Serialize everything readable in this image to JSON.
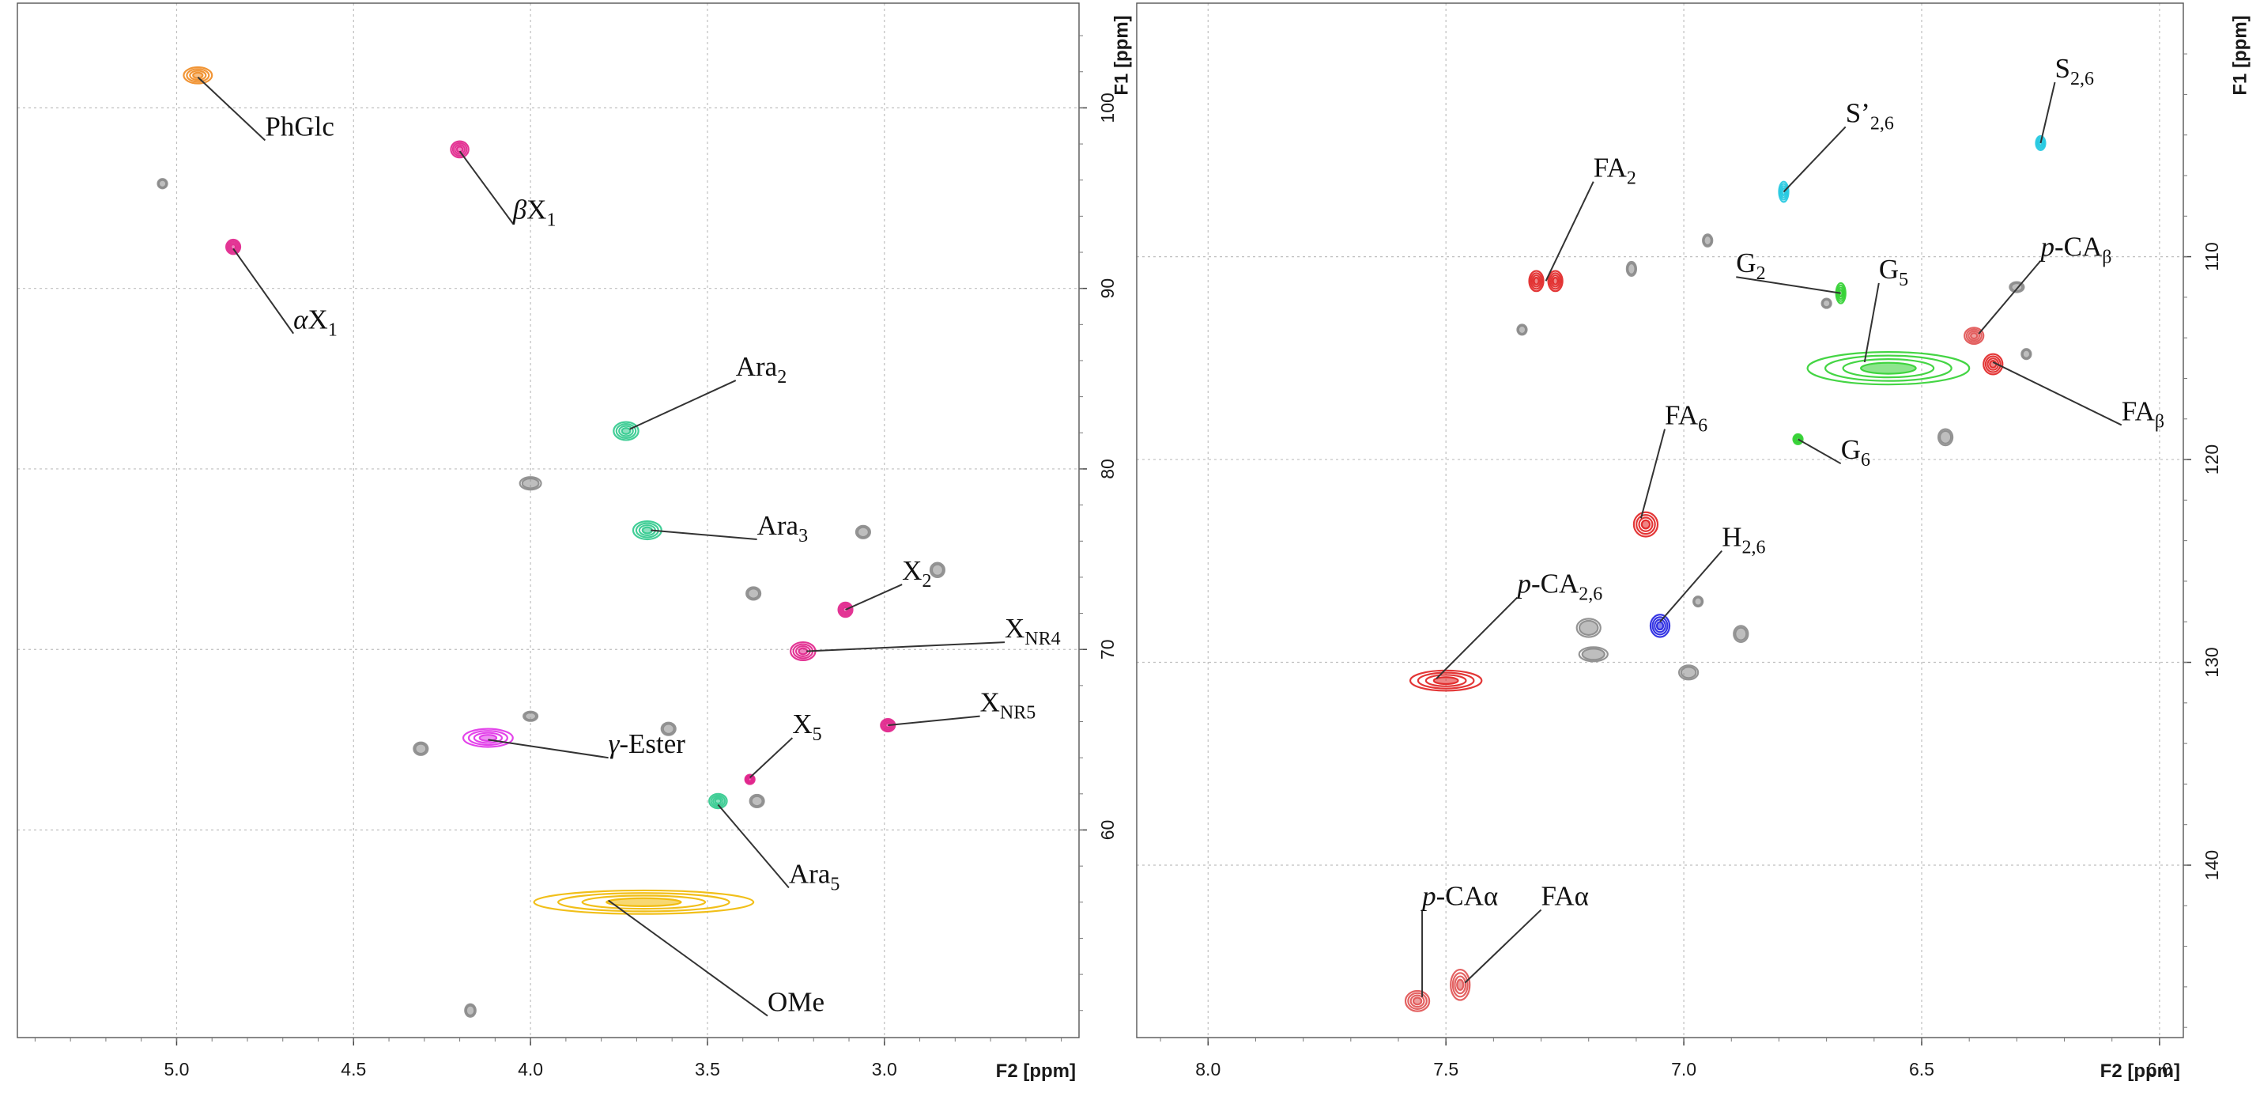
{
  "chart_data": [
    {
      "type": "scatter",
      "subtype": "2D HSQC NMR spectrum",
      "panel": "left",
      "xlabel": "F2 [ppm]",
      "ylabel": "F1 [ppm]",
      "xlim": [
        5.45,
        2.45
      ],
      "ylim": [
        105.8,
        48.5
      ],
      "x_ticks": [
        "5.0",
        "4.5",
        "4.0",
        "3.5",
        "3.0"
      ],
      "y_ticks": [
        "60",
        "70",
        "80",
        "90",
        "100"
      ],
      "grid": "dashed",
      "peaks": [
        {
          "name": "OMe",
          "x": 3.68,
          "y": 56.0,
          "w": 0.62,
          "h": 1.3,
          "color": "#f0b800"
        },
        {
          "name": "Ara5",
          "x": 3.47,
          "y": 61.6,
          "w": 0.05,
          "h": 0.8,
          "color": "#2ec98c"
        },
        {
          "name": "γ-Ester",
          "x": 4.12,
          "y": 65.1,
          "w": 0.14,
          "h": 1.0,
          "color": "#e030e8"
        },
        {
          "name": "X5",
          "x": 3.38,
          "y": 62.8,
          "w": 0.02,
          "h": 0.5,
          "color": "#e0208a"
        },
        {
          "name": "XNR5",
          "x": 2.99,
          "y": 65.8,
          "w": 0.04,
          "h": 0.7,
          "color": "#e0208a"
        },
        {
          "name": "XNR4",
          "x": 3.23,
          "y": 69.9,
          "w": 0.07,
          "h": 1.0,
          "color": "#e0208a"
        },
        {
          "name": "X2",
          "x": 3.11,
          "y": 72.2,
          "w": 0.04,
          "h": 0.8,
          "color": "#e0208a"
        },
        {
          "name": "Ara3",
          "x": 3.67,
          "y": 76.6,
          "w": 0.08,
          "h": 1.0,
          "color": "#2ec98c"
        },
        {
          "name": "Ara2",
          "x": 3.73,
          "y": 82.1,
          "w": 0.07,
          "h": 1.0,
          "color": "#2ec98c"
        },
        {
          "name": "αX1",
          "x": 4.84,
          "y": 92.3,
          "w": 0.04,
          "h": 0.8,
          "color": "#e0208a"
        },
        {
          "name": "βX1",
          "x": 4.2,
          "y": 97.7,
          "w": 0.05,
          "h": 0.9,
          "color": "#e0208a"
        },
        {
          "name": "PhGlc",
          "x": 4.94,
          "y": 101.8,
          "w": 0.08,
          "h": 0.9,
          "color": "#f08a20"
        },
        {
          "name": "unassigned",
          "x": 4.17,
          "y": 50.0,
          "w": 0.03,
          "h": 0.7,
          "color": "#888888"
        },
        {
          "name": "unassigned",
          "x": 4.31,
          "y": 64.5,
          "w": 0.04,
          "h": 0.7,
          "color": "#888888"
        },
        {
          "name": "unassigned",
          "x": 4.0,
          "y": 66.3,
          "w": 0.04,
          "h": 0.5,
          "color": "#888888"
        },
        {
          "name": "unassigned",
          "x": 3.61,
          "y": 65.6,
          "w": 0.04,
          "h": 0.7,
          "color": "#888888"
        },
        {
          "name": "unassigned",
          "x": 3.36,
          "y": 61.6,
          "w": 0.04,
          "h": 0.7,
          "color": "#888888"
        },
        {
          "name": "unassigned",
          "x": 3.37,
          "y": 73.1,
          "w": 0.04,
          "h": 0.7,
          "color": "#888888"
        },
        {
          "name": "unassigned",
          "x": 2.85,
          "y": 74.4,
          "w": 0.04,
          "h": 0.8,
          "color": "#888888"
        },
        {
          "name": "unassigned",
          "x": 3.06,
          "y": 76.5,
          "w": 0.04,
          "h": 0.7,
          "color": "#888888"
        },
        {
          "name": "unassigned",
          "x": 4.0,
          "y": 79.2,
          "w": 0.06,
          "h": 0.7,
          "color": "#888888"
        },
        {
          "name": "unassigned",
          "x": 5.04,
          "y": 95.8,
          "w": 0.02,
          "h": 0.5,
          "color": "#888888"
        }
      ],
      "labels": [
        {
          "text": "OMe",
          "sub": "",
          "italic": "",
          "x": 3.33,
          "y": 49.7,
          "tx": 3.78,
          "ty": 56.1
        },
        {
          "text": "Ara",
          "sub": "5",
          "italic": "",
          "x": 3.27,
          "y": 56.8,
          "tx": 3.47,
          "ty": 61.4
        },
        {
          "text": "-Ester",
          "sub": "",
          "italic": "γ",
          "x": 3.78,
          "y": 64.0,
          "tx": 4.12,
          "ty": 65.0
        },
        {
          "text": "X",
          "sub": "5",
          "italic": "",
          "x": 3.26,
          "y": 65.1,
          "tx": 3.38,
          "ty": 62.9
        },
        {
          "text": "X",
          "sub": "NR5",
          "italic": "",
          "x": 2.73,
          "y": 66.3,
          "tx": 2.99,
          "ty": 65.8
        },
        {
          "text": "X",
          "sub": "NR4",
          "italic": "",
          "x": 2.66,
          "y": 70.4,
          "tx": 3.22,
          "ty": 69.9
        },
        {
          "text": "X",
          "sub": "2",
          "italic": "",
          "x": 2.95,
          "y": 73.6,
          "tx": 3.11,
          "ty": 72.2
        },
        {
          "text": "Ara",
          "sub": "3",
          "italic": "",
          "x": 3.36,
          "y": 76.1,
          "tx": 3.66,
          "ty": 76.6
        },
        {
          "text": "Ara",
          "sub": "2",
          "italic": "",
          "x": 3.42,
          "y": 84.9,
          "tx": 3.72,
          "ty": 82.2
        },
        {
          "text": "X",
          "sub": "1",
          "italic": "α",
          "x": 4.67,
          "y": 87.5,
          "tx": 4.84,
          "ty": 92.2
        },
        {
          "text": "X",
          "sub": "1",
          "italic": "β",
          "x": 4.05,
          "y": 93.6,
          "tx": 4.2,
          "ty": 97.6
        },
        {
          "text": "PhGlc",
          "sub": "",
          "italic": "",
          "x": 4.75,
          "y": 98.2,
          "tx": 4.94,
          "ty": 101.7
        }
      ]
    },
    {
      "type": "scatter",
      "subtype": "2D HSQC NMR spectrum",
      "panel": "right",
      "xlabel": "F2 [ppm]",
      "ylabel": "F1 [ppm]",
      "xlim": [
        8.15,
        5.95
      ],
      "ylim": [
        97.5,
        148.5
      ],
      "x_ticks": [
        "8.0",
        "7.5",
        "7.0",
        "6.5",
        "6.0"
      ],
      "y_ticks": [
        "110",
        "120",
        "130",
        "140"
      ],
      "grid": "dashed",
      "peaks": [
        {
          "name": "S2,6",
          "x": 6.25,
          "y": 104.4,
          "w": 0.01,
          "h": 0.7,
          "color": "#20c8e0"
        },
        {
          "name": "S'2,6",
          "x": 6.79,
          "y": 106.8,
          "w": 0.02,
          "h": 1.0,
          "color": "#20c8e0"
        },
        {
          "name": "FA2",
          "x": 7.31,
          "y": 111.2,
          "w": 0.03,
          "h": 1.0,
          "color": "#e02020"
        },
        {
          "name": "FA2",
          "x": 7.27,
          "y": 111.2,
          "w": 0.03,
          "h": 1.0,
          "color": "#e02020"
        },
        {
          "name": "G2",
          "x": 6.67,
          "y": 111.8,
          "w": 0.02,
          "h": 1.0,
          "color": "#30d030"
        },
        {
          "name": "G5",
          "x": 6.57,
          "y": 115.5,
          "w": 0.34,
          "h": 1.6,
          "color": "#30d030"
        },
        {
          "name": "p-CAβ",
          "x": 6.39,
          "y": 113.9,
          "w": 0.04,
          "h": 0.8,
          "color": "#e05050"
        },
        {
          "name": "FAβ",
          "x": 6.35,
          "y": 115.3,
          "w": 0.04,
          "h": 1.0,
          "color": "#e02020"
        },
        {
          "name": "G6",
          "x": 6.76,
          "y": 119.0,
          "w": 0.01,
          "h": 0.5,
          "color": "#30d030"
        },
        {
          "name": "FA6",
          "x": 7.08,
          "y": 123.2,
          "w": 0.05,
          "h": 1.2,
          "color": "#e02020"
        },
        {
          "name": "H2,6",
          "x": 7.05,
          "y": 128.2,
          "w": 0.04,
          "h": 1.1,
          "color": "#2020e0"
        },
        {
          "name": "p-CA2,6",
          "x": 7.5,
          "y": 130.9,
          "w": 0.15,
          "h": 1.0,
          "color": "#e02020"
        },
        {
          "name": "FAα",
          "x": 7.47,
          "y": 145.9,
          "w": 0.04,
          "h": 1.5,
          "color": "#e05050"
        },
        {
          "name": "p-CAα",
          "x": 7.56,
          "y": 146.7,
          "w": 0.05,
          "h": 1.0,
          "color": "#e05050"
        },
        {
          "name": "unassigned",
          "x": 7.2,
          "y": 128.3,
          "w": 0.05,
          "h": 0.9,
          "color": "#888888"
        },
        {
          "name": "unassigned",
          "x": 7.19,
          "y": 129.6,
          "w": 0.06,
          "h": 0.7,
          "color": "#888888"
        },
        {
          "name": "unassigned",
          "x": 6.99,
          "y": 130.5,
          "w": 0.04,
          "h": 0.7,
          "color": "#888888"
        },
        {
          "name": "unassigned",
          "x": 6.88,
          "y": 128.6,
          "w": 0.03,
          "h": 0.8,
          "color": "#888888"
        },
        {
          "name": "unassigned",
          "x": 6.45,
          "y": 118.9,
          "w": 0.03,
          "h": 0.8,
          "color": "#888888"
        },
        {
          "name": "unassigned",
          "x": 6.95,
          "y": 109.2,
          "w": 0.02,
          "h": 0.6,
          "color": "#888888"
        },
        {
          "name": "unassigned",
          "x": 7.11,
          "y": 110.6,
          "w": 0.02,
          "h": 0.7,
          "color": "#888888"
        },
        {
          "name": "unassigned",
          "x": 6.3,
          "y": 111.5,
          "w": 0.03,
          "h": 0.5,
          "color": "#888888"
        },
        {
          "name": "unassigned",
          "x": 6.28,
          "y": 114.8,
          "w": 0.02,
          "h": 0.5,
          "color": "#888888"
        },
        {
          "name": "unassigned",
          "x": 7.34,
          "y": 113.6,
          "w": 0.01,
          "h": 0.5,
          "color": "#888888"
        },
        {
          "name": "unassigned",
          "x": 6.97,
          "y": 127.0,
          "w": 0.01,
          "h": 0.5,
          "color": "#888888"
        },
        {
          "name": "unassigned",
          "x": 6.7,
          "y": 112.3,
          "w": 0.01,
          "h": 0.4,
          "color": "#888888"
        }
      ],
      "labels": [
        {
          "text": "S",
          "sub": "2,6",
          "italic": "",
          "x": 6.22,
          "y": 101.4,
          "tx": 6.25,
          "ty": 104.4
        },
        {
          "text": "S’",
          "sub": "2,6",
          "italic": "",
          "x": 6.66,
          "y": 103.6,
          "tx": 6.79,
          "ty": 106.8
        },
        {
          "text": "FA",
          "sub": "2",
          "italic": "",
          "x": 7.19,
          "y": 106.3,
          "tx": 7.29,
          "ty": 111.2
        },
        {
          "text": "G",
          "sub": "2",
          "italic": "",
          "x": 6.89,
          "y": 111.0,
          "tx": 6.67,
          "ty": 111.8
        },
        {
          "text": "G",
          "sub": "5",
          "italic": "",
          "x": 6.59,
          "y": 111.3,
          "tx": 6.62,
          "ty": 115.2
        },
        {
          "text": "-CA",
          "sub": "β",
          "italic": "p",
          "x": 6.25,
          "y": 110.2,
          "tx": 6.38,
          "ty": 113.8
        },
        {
          "text": "FA",
          "sub": "β",
          "italic": "",
          "x": 6.08,
          "y": 118.3,
          "tx": 6.35,
          "ty": 115.2
        },
        {
          "text": "G",
          "sub": "6",
          "italic": "",
          "x": 6.67,
          "y": 120.2,
          "tx": 6.76,
          "ty": 119.0
        },
        {
          "text": "FA",
          "sub": "6",
          "italic": "",
          "x": 7.04,
          "y": 118.5,
          "tx": 7.09,
          "ty": 122.9
        },
        {
          "text": "H",
          "sub": "2,6",
          "italic": "",
          "x": 6.92,
          "y": 124.5,
          "tx": 7.05,
          "ty": 128.0
        },
        {
          "text": "-CA",
          "sub": "2,6",
          "italic": "p",
          "x": 7.35,
          "y": 126.8,
          "tx": 7.52,
          "ty": 130.8
        },
        {
          "text": "-CAα",
          "sub": "",
          "italic": "p",
          "x": 7.55,
          "y": 142.2,
          "tx": 7.55,
          "ty": 146.5
        },
        {
          "text": "FAα",
          "sub": "",
          "italic": "",
          "x": 7.3,
          "y": 142.2,
          "tx": 7.46,
          "ty": 145.8
        }
      ]
    }
  ]
}
